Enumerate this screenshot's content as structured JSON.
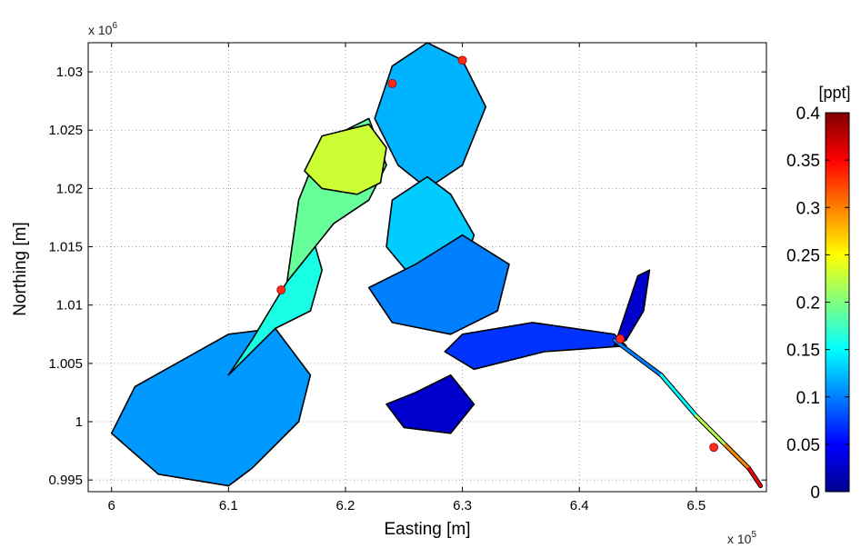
{
  "chart_data": {
    "type": "heatmap",
    "title": "",
    "xlabel": "Easting [m]",
    "ylabel": "Northing [m]",
    "x_exponent": "x 10",
    "x_exponent_power": "5",
    "y_exponent": "x 10",
    "y_exponent_power": "6",
    "xlim": [
      5.98,
      6.56
    ],
    "ylim": [
      0.994,
      1.0325
    ],
    "x_ticks": [
      6.0,
      6.1,
      6.2,
      6.3,
      6.4,
      6.5
    ],
    "x_tick_labels": [
      "6",
      "6.1",
      "6.2",
      "6.3",
      "6.4",
      "6.5"
    ],
    "y_ticks": [
      0.995,
      1.0,
      1.005,
      1.01,
      1.015,
      1.02,
      1.025,
      1.03
    ],
    "y_tick_labels": [
      "0.995",
      "1",
      "1.005",
      "1.01",
      "1.015",
      "1.02",
      "1.025",
      "1.03"
    ],
    "grid": true,
    "colorbar": {
      "label": "[ppt]",
      "range": [
        0,
        0.4
      ],
      "ticks": [
        0,
        0.05,
        0.1,
        0.15,
        0.2,
        0.25,
        0.3,
        0.35,
        0.4
      ],
      "tick_labels": [
        "0",
        "0.05",
        "0.1",
        "0.15",
        "0.2",
        "0.25",
        "0.3",
        "0.35",
        "0.4"
      ],
      "colormap": "jet",
      "placement": "right"
    },
    "regions": [
      {
        "x": [
          6.04,
          6.0,
          6.02,
          6.1,
          6.14,
          6.17,
          6.16,
          6.12,
          6.1
        ],
        "y": [
          0.9955,
          0.999,
          1.003,
          1.0075,
          1.008,
          1.004,
          1.0,
          0.996,
          0.9945
        ],
        "value": 0.11
      },
      {
        "x": [
          6.1,
          6.14,
          6.17,
          6.18,
          6.17,
          6.15,
          6.12
        ],
        "y": [
          1.004,
          1.008,
          1.0095,
          1.013,
          1.0165,
          1.012,
          1.007
        ],
        "value": 0.16
      },
      {
        "x": [
          6.15,
          6.16,
          6.18,
          6.22,
          6.235,
          6.22,
          6.19,
          6.17
        ],
        "y": [
          1.012,
          1.019,
          1.024,
          1.026,
          1.022,
          1.019,
          1.017,
          1.0145
        ],
        "value": 0.19
      },
      {
        "x": [
          6.165,
          6.18,
          6.22,
          6.235,
          6.23,
          6.21,
          6.18
        ],
        "y": [
          1.0215,
          1.0245,
          1.0255,
          1.0235,
          1.0205,
          1.0195,
          1.02
        ],
        "value": 0.23
      },
      {
        "x": [
          6.225,
          6.24,
          6.27,
          6.3,
          6.32,
          6.3,
          6.27,
          6.245
        ],
        "y": [
          1.026,
          1.0305,
          1.0325,
          1.031,
          1.027,
          1.022,
          1.02,
          1.022
        ],
        "value": 0.12
      },
      {
        "x": [
          6.24,
          6.27,
          6.29,
          6.31,
          6.3,
          6.26,
          6.235
        ],
        "y": [
          1.019,
          1.021,
          1.0195,
          1.016,
          1.013,
          1.012,
          1.015
        ],
        "value": 0.13
      },
      {
        "x": [
          6.22,
          6.26,
          6.3,
          6.34,
          6.33,
          6.29,
          6.24
        ],
        "y": [
          1.0115,
          1.0135,
          1.016,
          1.0135,
          1.0095,
          1.0075,
          1.0085
        ],
        "value": 0.1
      },
      {
        "x": [
          6.3,
          6.36,
          6.43,
          6.44,
          6.37,
          6.31,
          6.285
        ],
        "y": [
          1.0075,
          1.0085,
          1.0075,
          1.0065,
          1.006,
          1.0045,
          1.006
        ],
        "value": 0.07
      },
      {
        "x": [
          6.43,
          6.44,
          6.45,
          6.46,
          6.455,
          6.44
        ],
        "y": [
          1.0065,
          1.0095,
          1.0125,
          1.013,
          1.0095,
          1.007
        ],
        "value": 0.03
      },
      {
        "x": [
          6.235,
          6.26,
          6.29,
          6.31,
          6.29,
          6.25
        ],
        "y": [
          1.0015,
          1.0025,
          1.004,
          1.0015,
          0.999,
          0.9995
        ],
        "value": 0.03
      }
    ],
    "channel": {
      "x": [
        6.43,
        6.47,
        6.5,
        6.525,
        6.545,
        6.555
      ],
      "y": [
        1.007,
        1.004,
        1.0005,
        0.998,
        0.996,
        0.9945
      ],
      "values": [
        0.08,
        0.12,
        0.18,
        0.26,
        0.33,
        0.38
      ]
    },
    "stations": {
      "x": [
        6.24,
        6.3,
        6.145,
        6.435,
        6.515
      ],
      "y": [
        1.029,
        1.031,
        1.0113,
        1.0071,
        0.9978
      ]
    }
  }
}
